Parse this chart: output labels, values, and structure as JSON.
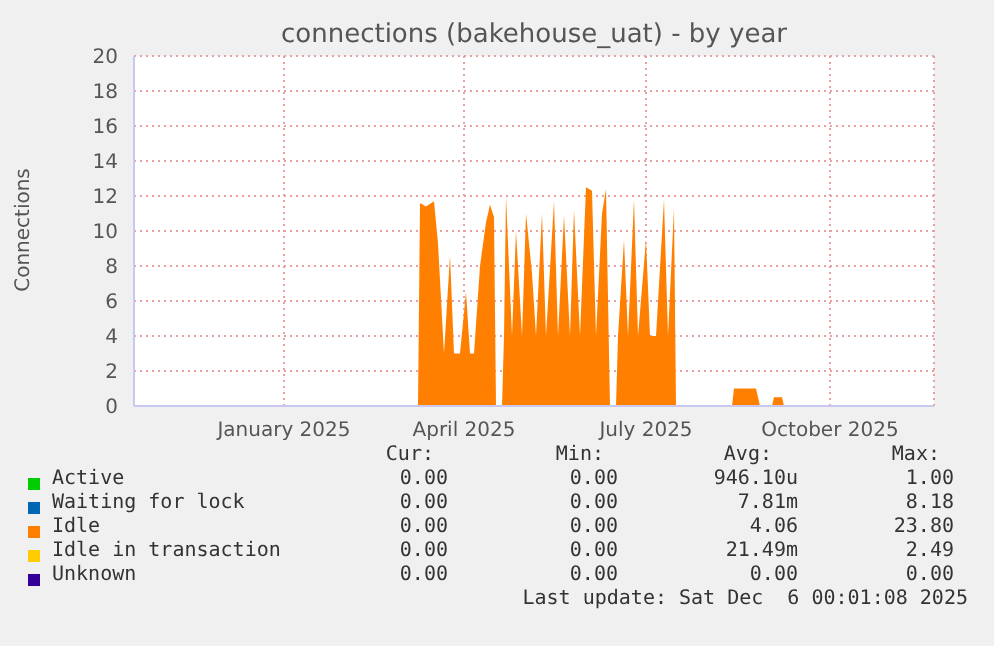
{
  "chart_data": {
    "type": "area",
    "title": "connections (bakehouse_uat) - by year",
    "ylabel": "Connections",
    "xlim": [
      "2024-11-01",
      "2025-12-06"
    ],
    "xticks": [
      {
        "value": "2025-01-15",
        "label": "January 2025"
      },
      {
        "value": "2025-04-15",
        "label": "April 2025"
      },
      {
        "value": "2025-07-15",
        "label": "July 2025"
      },
      {
        "value": "2025-10-15",
        "label": "October 2025"
      }
    ],
    "ylim": [
      0,
      20
    ],
    "yticks": [
      0,
      2,
      4,
      6,
      8,
      10,
      12,
      14,
      16,
      18,
      20
    ],
    "grid": true,
    "legend": "bottom",
    "marker": "none",
    "series": [
      {
        "name": "Active",
        "color": "#00cc00"
      },
      {
        "name": "Waiting for lock",
        "color": "#0066b3"
      },
      {
        "name": "Idle",
        "color": "#ff8000",
        "x": [
          "2024-11-01",
          "2025-03-23",
          "2025-03-24",
          "2025-03-27",
          "2025-03-31",
          "2025-04-02",
          "2025-04-05",
          "2025-04-08",
          "2025-04-10",
          "2025-04-13",
          "2025-04-16",
          "2025-04-18",
          "2025-04-20",
          "2025-04-23",
          "2025-04-26",
          "2025-04-28",
          "2025-04-30",
          "2025-05-01",
          "2025-05-04",
          "2025-05-05",
          "2025-05-06",
          "2025-05-09",
          "2025-05-11",
          "2025-05-14",
          "2025-05-16",
          "2025-05-19",
          "2025-05-21",
          "2025-05-24",
          "2025-05-26",
          "2025-05-30",
          "2025-06-01",
          "2025-06-04",
          "2025-06-07",
          "2025-06-09",
          "2025-06-12",
          "2025-06-15",
          "2025-06-18",
          "2025-06-20",
          "2025-06-23",
          "2025-06-25",
          "2025-06-27",
          "2025-06-30",
          "2025-07-01",
          "2025-07-04",
          "2025-07-06",
          "2025-07-09",
          "2025-07-11",
          "2025-07-15",
          "2025-07-17",
          "2025-07-20",
          "2025-07-24",
          "2025-07-26",
          "2025-07-29",
          "2025-07-30",
          "2025-08-27",
          "2025-08-28",
          "2025-09-08",
          "2025-09-10",
          "2025-09-16",
          "2025-09-17",
          "2025-09-21",
          "2025-09-22",
          "2025-12-06"
        ],
        "values": [
          0,
          0,
          11.6,
          11.4,
          11.7,
          9.3,
          3,
          8.6,
          3,
          3,
          6.5,
          3,
          3,
          8,
          10.5,
          11.5,
          10.8,
          0,
          0,
          4,
          12,
          4,
          10,
          4,
          11,
          7.6,
          4,
          11,
          4,
          11.7,
          4,
          10.9,
          4,
          11.2,
          4,
          12.5,
          12.3,
          4,
          11,
          12.4,
          0,
          0,
          4,
          9.5,
          4,
          11.8,
          4,
          9.5,
          4,
          4,
          11.8,
          4,
          11.3,
          0,
          0,
          1,
          1,
          0,
          0,
          0.5,
          0.5,
          0,
          0
        ]
      },
      {
        "name": "Idle in transaction",
        "color": "#ffcc00"
      },
      {
        "name": "Unknown",
        "color": "#330099"
      }
    ],
    "annotations": [
      "Cur:",
      "Min:",
      "Avg:",
      "Max:",
      "0.00",
      "0.00",
      "946.10u",
      "1.00",
      "0.00",
      "0.00",
      "7.81m",
      "8.18",
      "0.00",
      "0.00",
      "4.06",
      "23.80",
      "0.00",
      "0.00",
      "21.49m",
      "2.49",
      "0.00",
      "0.00",
      "0.00",
      "0.00",
      "Last update: Sat Dec  6 00:01:08 2025"
    ]
  }
}
